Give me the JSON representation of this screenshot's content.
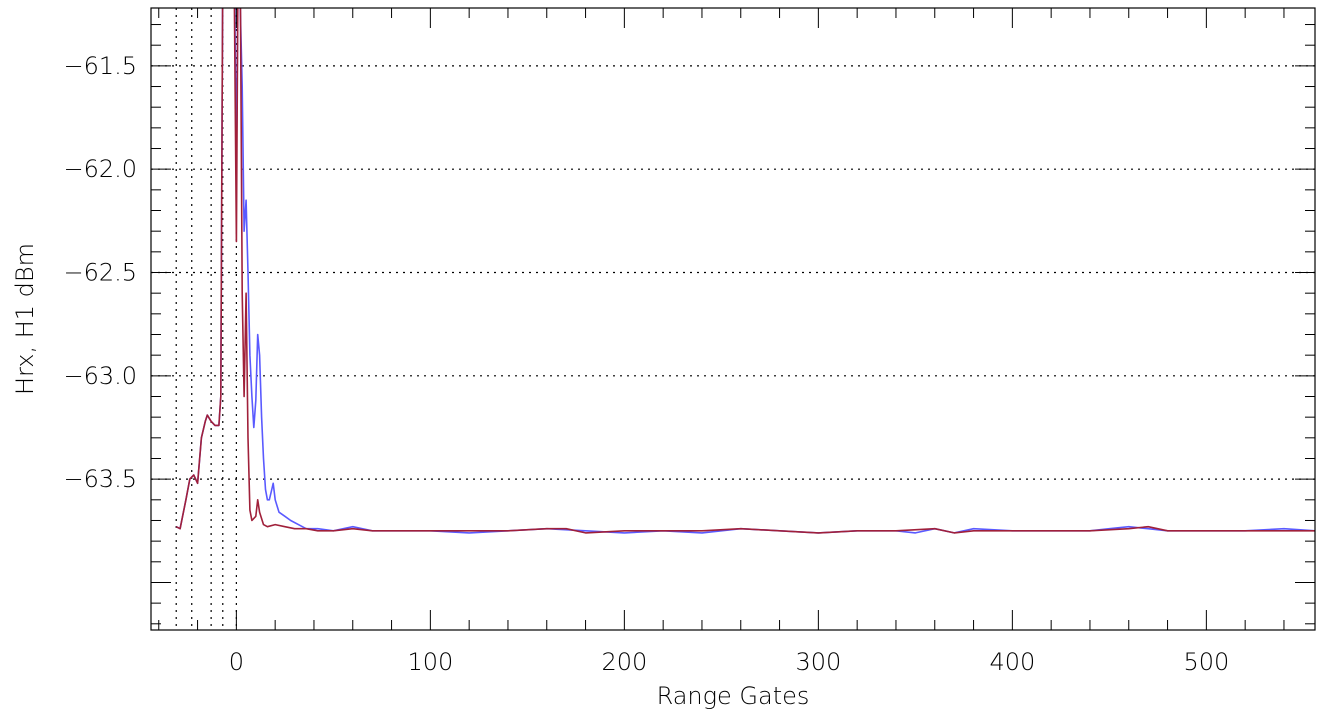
{
  "chart_data": {
    "type": "line",
    "title": "",
    "xlabel": "Range Gates",
    "ylabel": "Hrx, H1 dBm",
    "xlim": [
      -44,
      556
    ],
    "ylim": [
      -64.23,
      -61.22
    ],
    "x_ticks": [
      0,
      100,
      200,
      300,
      400,
      500
    ],
    "x_tick_labels": [
      "0",
      "100",
      "200",
      "300",
      "400",
      "500"
    ],
    "y_ticks": [
      -61.5,
      -62.0,
      -62.5,
      -63.0,
      -63.5
    ],
    "y_tick_labels": [
      "−61.5",
      "−62.0",
      "−62.5",
      "−63.0",
      "−63.5"
    ],
    "grid": "horizontal dotted at y ticks",
    "vertical_markers": [
      -31,
      -23,
      -13,
      -7,
      0
    ],
    "series": [
      {
        "color": "#5a5aff",
        "points": [
          [
            -31,
            -63.73
          ],
          [
            -29,
            -63.74
          ],
          [
            -26,
            -63.6
          ],
          [
            -24,
            -63.5
          ],
          [
            -22,
            -63.48
          ],
          [
            -20,
            -63.52
          ],
          [
            -18,
            -63.3
          ],
          [
            -16,
            -63.22
          ],
          [
            -15,
            -63.19
          ],
          [
            -13,
            -63.22
          ],
          [
            -11,
            -63.24
          ],
          [
            -9,
            -63.24
          ],
          [
            -8,
            -63.1
          ],
          [
            -7,
            -61.0
          ],
          [
            -5,
            -60.5
          ],
          [
            -2,
            -60.5
          ],
          [
            -1,
            -61.0
          ],
          [
            0,
            -62.0
          ],
          [
            1,
            -60.9
          ],
          [
            2,
            -61.2
          ],
          [
            3,
            -61.6
          ],
          [
            4,
            -62.3
          ],
          [
            5,
            -62.15
          ],
          [
            6,
            -62.5
          ],
          [
            7,
            -62.9
          ],
          [
            8,
            -63.1
          ],
          [
            9,
            -63.25
          ],
          [
            10,
            -63.12
          ],
          [
            11,
            -62.8
          ],
          [
            12,
            -62.9
          ],
          [
            13,
            -63.2
          ],
          [
            14,
            -63.4
          ],
          [
            15,
            -63.55
          ],
          [
            16,
            -63.6
          ],
          [
            17,
            -63.6
          ],
          [
            18,
            -63.56
          ],
          [
            19,
            -63.52
          ],
          [
            20,
            -63.6
          ],
          [
            22,
            -63.66
          ],
          [
            25,
            -63.68
          ],
          [
            28,
            -63.7
          ],
          [
            32,
            -63.72
          ],
          [
            36,
            -63.74
          ],
          [
            42,
            -63.74
          ],
          [
            50,
            -63.75
          ],
          [
            60,
            -63.73
          ],
          [
            70,
            -63.75
          ],
          [
            80,
            -63.75
          ],
          [
            100,
            -63.75
          ],
          [
            120,
            -63.76
          ],
          [
            140,
            -63.75
          ],
          [
            160,
            -63.74
          ],
          [
            180,
            -63.75
          ],
          [
            200,
            -63.76
          ],
          [
            220,
            -63.75
          ],
          [
            240,
            -63.76
          ],
          [
            260,
            -63.74
          ],
          [
            280,
            -63.75
          ],
          [
            300,
            -63.76
          ],
          [
            320,
            -63.75
          ],
          [
            340,
            -63.75
          ],
          [
            350,
            -63.76
          ],
          [
            360,
            -63.74
          ],
          [
            370,
            -63.76
          ],
          [
            380,
            -63.74
          ],
          [
            400,
            -63.75
          ],
          [
            420,
            -63.75
          ],
          [
            440,
            -63.75
          ],
          [
            450,
            -63.74
          ],
          [
            460,
            -63.73
          ],
          [
            470,
            -63.74
          ],
          [
            480,
            -63.75
          ],
          [
            500,
            -63.75
          ],
          [
            520,
            -63.75
          ],
          [
            540,
            -63.74
          ],
          [
            556,
            -63.75
          ]
        ]
      },
      {
        "color": "#a0203a",
        "points": [
          [
            -31,
            -63.73
          ],
          [
            -29,
            -63.74
          ],
          [
            -26,
            -63.6
          ],
          [
            -24,
            -63.5
          ],
          [
            -22,
            -63.48
          ],
          [
            -20,
            -63.52
          ],
          [
            -18,
            -63.3
          ],
          [
            -16,
            -63.22
          ],
          [
            -15,
            -63.19
          ],
          [
            -13,
            -63.22
          ],
          [
            -11,
            -63.24
          ],
          [
            -9,
            -63.24
          ],
          [
            -8,
            -63.1
          ],
          [
            -7,
            -61.0
          ],
          [
            -5,
            -60.5
          ],
          [
            -2,
            -60.5
          ],
          [
            -1,
            -61.2
          ],
          [
            0,
            -62.35
          ],
          [
            1,
            -60.8
          ],
          [
            2,
            -61.0
          ],
          [
            3,
            -62.6
          ],
          [
            4,
            -63.1
          ],
          [
            5,
            -62.6
          ],
          [
            6,
            -63.3
          ],
          [
            7,
            -63.65
          ],
          [
            8,
            -63.7
          ],
          [
            10,
            -63.68
          ],
          [
            11,
            -63.6
          ],
          [
            12,
            -63.66
          ],
          [
            14,
            -63.72
          ],
          [
            16,
            -63.73
          ],
          [
            20,
            -63.72
          ],
          [
            25,
            -63.73
          ],
          [
            30,
            -63.74
          ],
          [
            36,
            -63.74
          ],
          [
            42,
            -63.75
          ],
          [
            50,
            -63.75
          ],
          [
            60,
            -63.74
          ],
          [
            70,
            -63.75
          ],
          [
            80,
            -63.75
          ],
          [
            100,
            -63.75
          ],
          [
            120,
            -63.75
          ],
          [
            140,
            -63.75
          ],
          [
            160,
            -63.74
          ],
          [
            170,
            -63.74
          ],
          [
            180,
            -63.76
          ],
          [
            200,
            -63.75
          ],
          [
            220,
            -63.75
          ],
          [
            240,
            -63.75
          ],
          [
            260,
            -63.74
          ],
          [
            280,
            -63.75
          ],
          [
            300,
            -63.76
          ],
          [
            320,
            -63.75
          ],
          [
            340,
            -63.75
          ],
          [
            360,
            -63.74
          ],
          [
            370,
            -63.76
          ],
          [
            380,
            -63.75
          ],
          [
            400,
            -63.75
          ],
          [
            420,
            -63.75
          ],
          [
            440,
            -63.75
          ],
          [
            460,
            -63.74
          ],
          [
            470,
            -63.73
          ],
          [
            480,
            -63.75
          ],
          [
            500,
            -63.75
          ],
          [
            520,
            -63.75
          ],
          [
            540,
            -63.75
          ],
          [
            556,
            -63.75
          ]
        ]
      }
    ]
  }
}
